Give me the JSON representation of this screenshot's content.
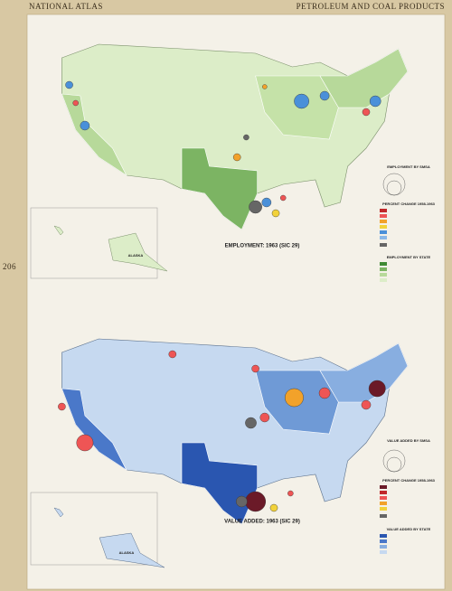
{
  "header": {
    "left": "NATIONAL ATLAS",
    "right": "PETROLEUM AND COAL PRODUCTS"
  },
  "page_number": "206",
  "maps": [
    {
      "title": "EMPLOYMENT: 1963 (SIC 29)",
      "inset_label": "ALASKA",
      "legends": [
        {
          "title": "EMPLOYMENT BY SMSA"
        },
        {
          "title": "PERCENT CHANGE 1958-1963"
        },
        {
          "title": "EMPLOYMENT BY STATE"
        }
      ]
    },
    {
      "title": "VALUE ADDED: 1963 (SIC 29)",
      "inset_label": "ALASKA",
      "legends": [
        {
          "title": "VALUE ADDED BY SMSA"
        },
        {
          "title": "PERCENT CHANGE 1958-1963"
        },
        {
          "title": "VALUE ADDED BY STATE"
        }
      ]
    }
  ]
}
